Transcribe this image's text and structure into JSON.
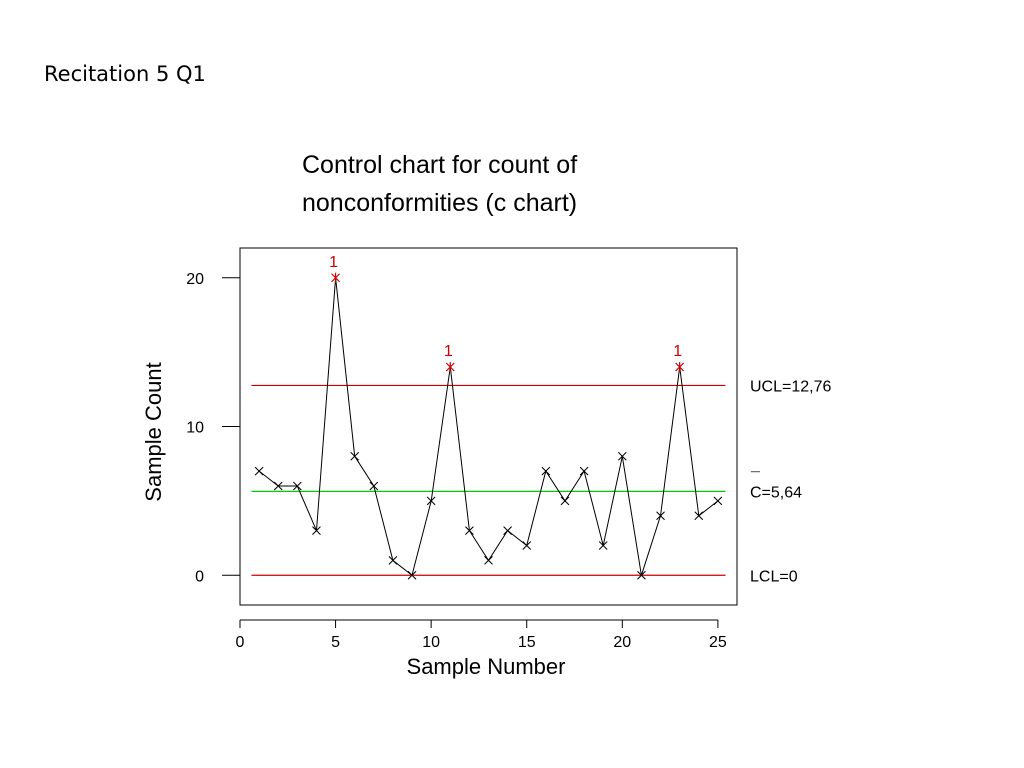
{
  "slide_title": "Recitation 5 Q1",
  "chart_data": {
    "type": "line",
    "title_lines": [
      "Control chart for count of",
      "nonconformities (c chart)"
    ],
    "xlabel": "Sample Number",
    "ylabel": "Sample Count",
    "x": [
      1,
      2,
      3,
      4,
      5,
      6,
      7,
      8,
      9,
      10,
      11,
      12,
      13,
      14,
      15,
      16,
      17,
      18,
      19,
      20,
      21,
      22,
      23,
      24,
      25
    ],
    "values": [
      7,
      6,
      6,
      3,
      20,
      8,
      6,
      1,
      0,
      5,
      14,
      3,
      1,
      3,
      2,
      7,
      5,
      7,
      2,
      8,
      0,
      4,
      14,
      4,
      5
    ],
    "out_of_control_samples": [
      5,
      11,
      23
    ],
    "out_of_control_flag": "1",
    "xlim": [
      0,
      26
    ],
    "ylim": [
      -2,
      22
    ],
    "x_ticks": [
      0,
      5,
      10,
      15,
      20,
      25
    ],
    "y_ticks": [
      0,
      10,
      20
    ],
    "reference_lines": [
      {
        "label": "UCL=12,76",
        "value": 12.76,
        "color": "#cc0000"
      },
      {
        "label": "C=5,64",
        "value": 5.64,
        "color": "#00cc00"
      },
      {
        "label": "LCL=0",
        "value": 0,
        "color": "#cc0000"
      }
    ],
    "center_line_overbar": "¯",
    "point_color": "#000000",
    "flag_color": "#cc0000",
    "grid": false
  }
}
